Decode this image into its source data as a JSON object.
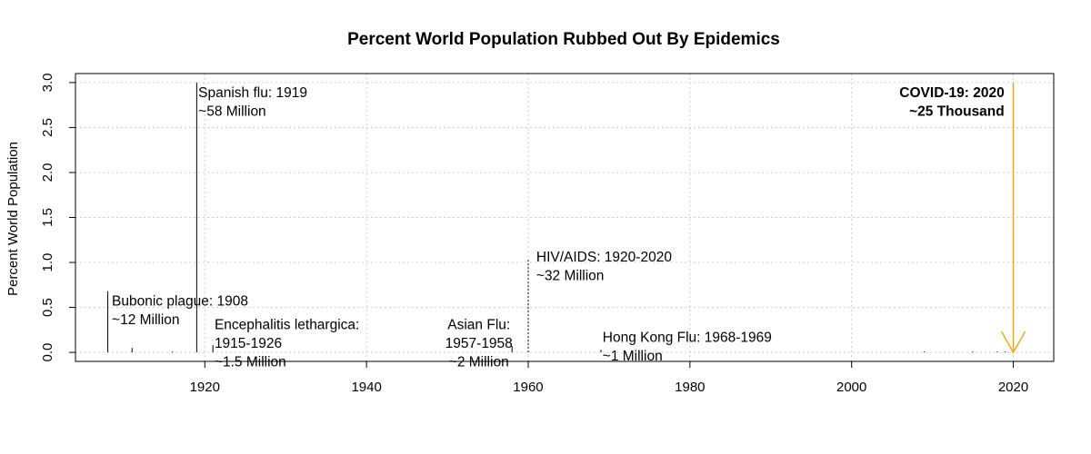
{
  "chart_data": {
    "type": "bar",
    "title": "Percent World Population Rubbed Out By Epidemics",
    "xlabel": "",
    "ylabel": "Percent World Population",
    "xlim": [
      1904,
      2025
    ],
    "ylim": [
      -0.1,
      3.1
    ],
    "x_ticks": [
      1920,
      1940,
      1960,
      1980,
      2000,
      2020
    ],
    "y_ticks": [
      0.0,
      0.5,
      1.0,
      1.5,
      2.0,
      2.5,
      3.0
    ],
    "y_tick_labels": [
      "0.0",
      "0.5",
      "1.0",
      "1.5",
      "2.0",
      "2.5",
      "3.0"
    ],
    "grid": true,
    "points": [
      {
        "year": 1908,
        "percent": 0.68,
        "style": "solid"
      },
      {
        "year": 1911,
        "percent": 0.05,
        "style": "solid"
      },
      {
        "year": 1916,
        "percent": 0.01,
        "style": "solid"
      },
      {
        "year": 1919,
        "percent": 3.0,
        "style": "solid"
      },
      {
        "year": 1921,
        "percent": 0.08,
        "style": "solid"
      },
      {
        "year": 1958,
        "percent": 0.07,
        "style": "solid"
      },
      {
        "year": 1960,
        "percent": 1.05,
        "style": "dotted"
      },
      {
        "year": 1969,
        "percent": 0.03,
        "style": "solid"
      },
      {
        "year": 2009,
        "percent": 0.01,
        "style": "solid"
      },
      {
        "year": 2015,
        "percent": 0.01,
        "style": "solid"
      },
      {
        "year": 2018,
        "percent": 0.01,
        "style": "solid"
      },
      {
        "year": 2019,
        "percent": 0.01,
        "style": "solid"
      }
    ],
    "arrow": {
      "year": 2020,
      "from": 3.0,
      "to": 0.0,
      "color": "#f0a818"
    },
    "annotations": [
      {
        "lines": [
          "Bubonic plague: 1908",
          "~12 Million"
        ],
        "x": 1908.5,
        "y": 0.63,
        "align": "start",
        "bold": false
      },
      {
        "lines": [
          "Spanish flu: 1919",
          "~58 Million"
        ],
        "x": 1919.2,
        "y": 2.95,
        "align": "start",
        "bold": false
      },
      {
        "lines": [
          "Encephalitis lethargica:",
          "1915-1926",
          "~1.5 Million"
        ],
        "x": 1921.2,
        "y": 0.37,
        "align": "start",
        "bold": false
      },
      {
        "lines": [
          "Asian Flu:",
          "1957-1958",
          "~2 Million"
        ],
        "x": 1953.9,
        "y": 0.37,
        "align": "middle",
        "bold": false
      },
      {
        "lines": [
          "HIV/AIDS: 1920-2020",
          "~32 Million"
        ],
        "x": 1961.0,
        "y": 1.12,
        "align": "start",
        "bold": false
      },
      {
        "lines": [
          "Hong Kong Flu: 1968-1969",
          "~1 Million"
        ],
        "x": 1969.2,
        "y": 0.23,
        "align": "start",
        "bold": false
      },
      {
        "lines": [
          "COVID-19: 2020",
          "~25 Thousand"
        ],
        "x": 2018.9,
        "y": 2.95,
        "align": "end",
        "bold": true
      }
    ]
  }
}
